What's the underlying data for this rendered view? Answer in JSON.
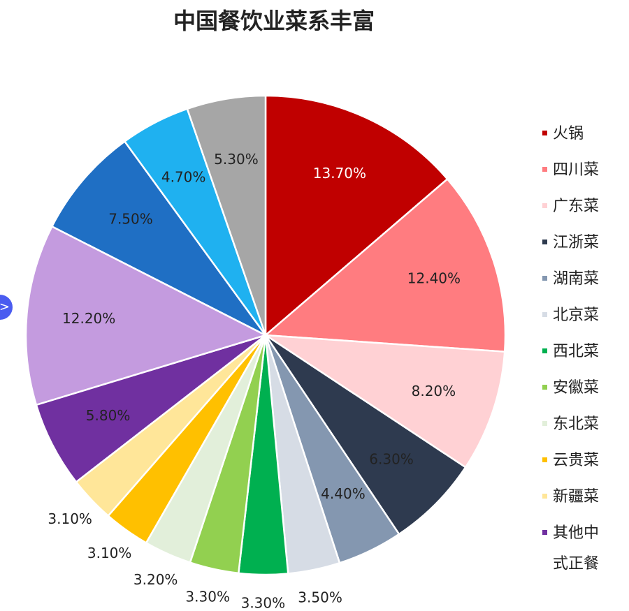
{
  "chart_data": {
    "type": "pie",
    "title": "中国餐饮业菜系丰富",
    "categories": [
      "火锅",
      "四川菜",
      "广东菜",
      "江浙菜",
      "湖南菜",
      "北京菜",
      "西北菜",
      "安徽菜",
      "东北菜",
      "云贵菜",
      "新疆菜",
      "其他中式正餐",
      null,
      null,
      null,
      null
    ],
    "values": [
      13.7,
      12.4,
      8.2,
      6.3,
      4.4,
      3.5,
      3.3,
      3.3,
      3.2,
      3.1,
      3.1,
      5.8,
      12.2,
      7.5,
      4.7,
      5.3
    ],
    "value_labels": [
      "13.70%",
      "12.40%",
      "8.20%",
      "6.30%",
      "4.40%",
      "3.50%",
      "3.30%",
      "3.30%",
      "3.20%",
      "3.10%",
      "3.10%",
      "5.80%",
      "12.20%",
      "7.50%",
      "4.70%",
      "5.30%"
    ],
    "colors": [
      "#c00000",
      "#ff7c80",
      "#ffd1d4",
      "#2e3a4f",
      "#8497b0",
      "#d6dce5",
      "#00b050",
      "#92d050",
      "#e2efda",
      "#ffc000",
      "#ffe699",
      "#7030a0",
      "#c49bdf",
      "#1f6fc4",
      "#1fb1f0",
      "#a6a6a6"
    ],
    "legend": "right"
  }
}
